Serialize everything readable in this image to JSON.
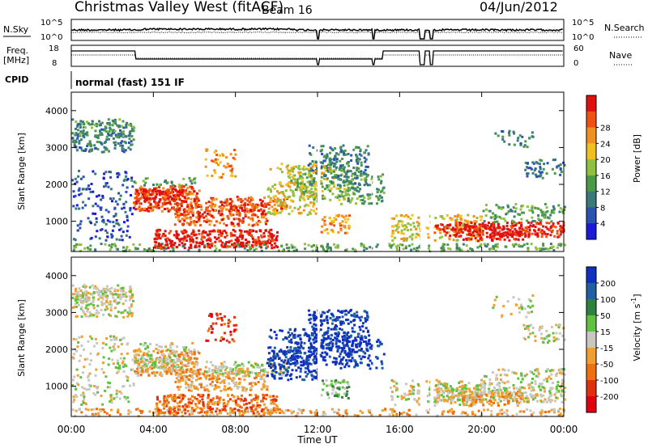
{
  "header": {
    "site": "Christmas Valley West (fitACF)",
    "beam": "Beam 16",
    "date": "04/Jun/2012"
  },
  "top_panels": {
    "nsky_label": "N.Sky",
    "nsearch_label": "N.Search",
    "nsky_ticks": [
      "10^5",
      "10^0"
    ],
    "nsearch_ticks": [
      "10^5",
      "10^0"
    ],
    "freq_label": "Freq.",
    "freq_unit": "[MHz]",
    "freq_ticks": [
      "18",
      "8"
    ],
    "nave_label": "Nave",
    "nave_ticks": [
      "60",
      "0"
    ],
    "cpid_label": "CPID",
    "cpid_value": "normal (fast) 151 IF"
  },
  "chart_data": [
    {
      "type": "heatmap",
      "name": "power",
      "ylabel": "Slant Range [km]",
      "xlabel": "Time UT",
      "x_ticks": [
        "00:00",
        "04:00",
        "08:00",
        "12:00",
        "16:00",
        "20:00",
        "00:00"
      ],
      "y_ticks": [
        "1000",
        "2000",
        "3000",
        "4000"
      ],
      "ylim": [
        180,
        4500
      ],
      "xlim_hours": [
        0,
        24
      ],
      "colorbar": {
        "label": "Power [dB]",
        "ticks": [
          "4",
          "8",
          "12",
          "16",
          "20",
          "24",
          "28"
        ],
        "colors": [
          "#1a1ad8",
          "#2a52b0",
          "#3a7a7a",
          "#4a9a4a",
          "#90c040",
          "#f0c020",
          "#f09020",
          "#f05010",
          "#e01010"
        ]
      }
    },
    {
      "type": "heatmap",
      "name": "velocity",
      "ylabel": "Slant Range [km]",
      "xlabel": "Time UT",
      "x_ticks": [
        "00:00",
        "04:00",
        "08:00",
        "12:00",
        "16:00",
        "20:00",
        "00:00"
      ],
      "y_ticks": [
        "1000",
        "2000",
        "3000",
        "4000"
      ],
      "ylim": [
        180,
        4500
      ],
      "xlim_hours": [
        0,
        24
      ],
      "colorbar": {
        "label": "Velocity [m s",
        "label_sup": "-1",
        "label_end": "]",
        "ticks": [
          "200",
          "100",
          "50",
          "15",
          "-15",
          "-50",
          "-100",
          "-200"
        ],
        "colors": [
          "#1030c0",
          "#2060a0",
          "#308040",
          "#60c040",
          "#c8c8c0",
          "#f0a030",
          "#f07010",
          "#e03010",
          "#e00010"
        ]
      }
    }
  ],
  "colors": {
    "frame": "#000000",
    "background": "#ffffff"
  }
}
